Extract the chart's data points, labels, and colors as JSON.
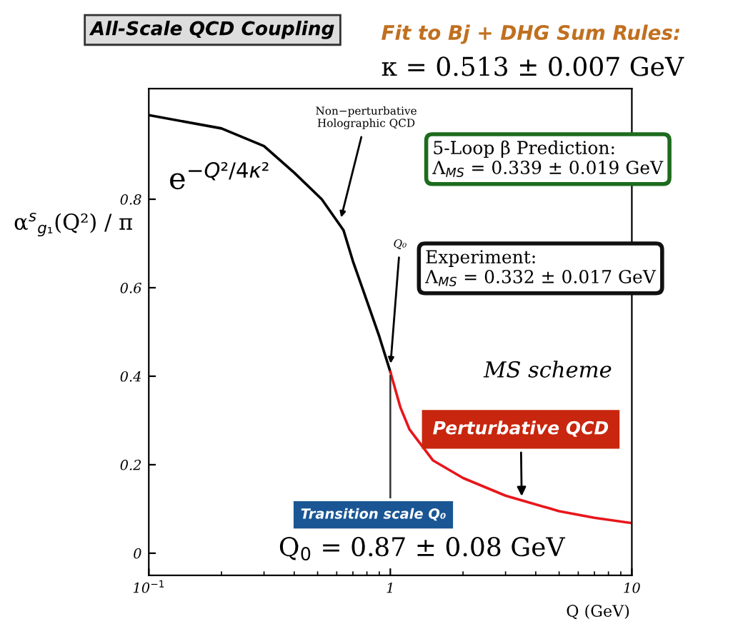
{
  "chart_data": {
    "type": "line",
    "title": "All-Scale QCD Coupling",
    "subtitle": "Fit to Bj + DHG Sum Rules:",
    "xlabel": "Q (GeV)",
    "ylabel": "α$^{s}$$_{g₁}$(Q²) / π",
    "series": [
      {
        "color": "#000000",
        "x": [
          0.1,
          0.2,
          0.3,
          0.4,
          0.52,
          0.64,
          0.7,
          0.8,
          0.9,
          1.0
        ],
        "values": [
          0.99,
          0.96,
          0.92,
          0.86,
          0.8,
          0.73,
          0.66,
          0.57,
          0.49,
          0.41
        ]
      },
      {
        "color": "#e8161b",
        "x": [
          1.0,
          1.1,
          1.2,
          1.5,
          2,
          3,
          5,
          7,
          10
        ],
        "values": [
          0.41,
          0.33,
          0.28,
          0.21,
          0.17,
          0.13,
          0.095,
          0.08,
          0.068
        ]
      }
    ],
    "xlim": [
      0.1,
      10
    ],
    "xticks": [
      {
        "value": 0.1,
        "label": "10$^{−1}$"
      },
      1,
      10
    ],
    "ylim": [
      -0.05,
      1.05
    ],
    "yticks": [
      0,
      0.2,
      0.4,
      0.6,
      0.8
    ],
    "log": "x",
    "grid": false,
    "legend": false,
    "ref_lines": [
      {
        "axis": "x",
        "value": 1,
        "color": "#333333"
      }
    ],
    "annotations": [
      "κ = 0.513 ± 0.007 GeV",
      {
        "text": "Non−perturbative\nHolographic QCD",
        "x": 0.62,
        "y": 0.75
      },
      {
        "text": "Q₀",
        "x": 1.0,
        "y": 0.42
      },
      {
        "text": "Perturbative QCD",
        "x": 3.5,
        "y": 0.12
      },
      "e$^{−Q²/4κ²}$",
      "5-Loop β Prediction:\nΛ$_{MS}$ = 0.339 ± 0.019 GeV",
      "Experiment:\nΛ$_{MS}$ = 0.332 ± 0.017 GeV",
      "MS scheme",
      "Transition scale Q₀",
      "Q$_{0}$ = 0.87 ± 0.08 GeV"
    ]
  }
}
